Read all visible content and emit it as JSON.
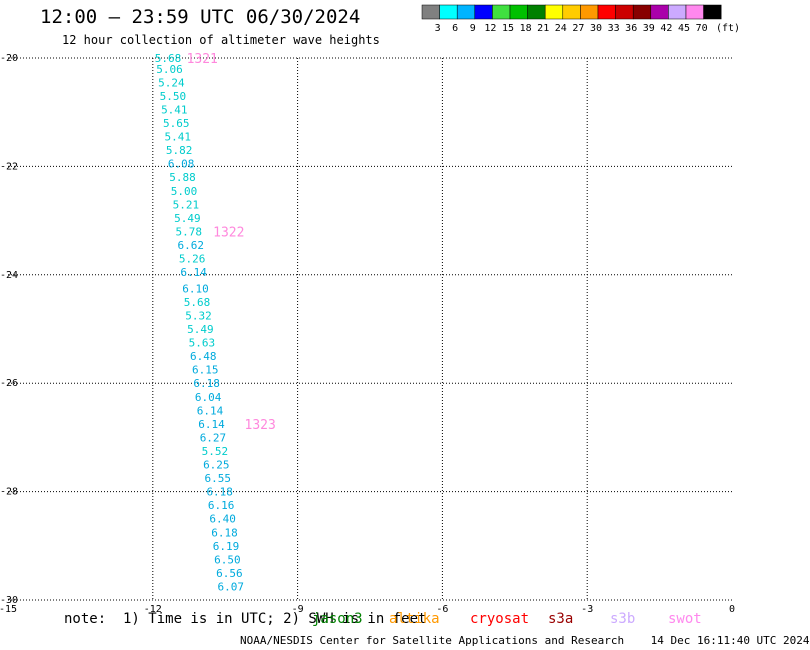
{
  "title": "12:00 – 23:59 UTC 06/30/2024",
  "subtitle": "12 hour collection of altimeter wave heights",
  "colorbar": {
    "ticks": [
      "3",
      "6",
      "9",
      "12",
      "15",
      "18",
      "21",
      "24",
      "27",
      "30",
      "33",
      "36",
      "39",
      "42",
      "45",
      "70"
    ],
    "unit": "(ft)",
    "colors": [
      "#808080",
      "#00ffff",
      "#00b4ff",
      "#0000ff",
      "#40e040",
      "#00c000",
      "#008000",
      "#ffff00",
      "#ffcc00",
      "#ff9900",
      "#ff0000",
      "#cc0000",
      "#880000",
      "#aa00aa",
      "#ccaaff",
      "#ff88ee",
      "#000000"
    ]
  },
  "note": "note:  1) Time is in UTC; 2) SWH is in feet",
  "missions": [
    {
      "label": "jason3",
      "color": "#008000"
    },
    {
      "label": "altika",
      "color": "#ff9900"
    },
    {
      "label": "cryosat",
      "color": "#ff0000"
    },
    {
      "label": "s3a",
      "color": "#990000"
    },
    {
      "label": "s3b",
      "color": "#ccaaff"
    },
    {
      "label": "swot",
      "color": "#ff88ee"
    }
  ],
  "credit": "NOAA/NESDIS Center for Satellite Applications and Research    14 Dec 16:11:40 UTC 2024",
  "chart_data": {
    "type": "scatter",
    "xlim": [
      -15,
      0
    ],
    "ylim": [
      -30,
      -20
    ],
    "xticks": [
      "-15",
      "-12",
      "-9",
      "-6",
      "-3",
      "0"
    ],
    "yticks": [
      "-20",
      "-22",
      "-24",
      "-26",
      "-28",
      "-30"
    ],
    "grid": true,
    "points": [
      {
        "x": -12.0,
        "y": -20.0,
        "label": "5.68",
        "color": "#00cccc"
      },
      {
        "x": -11.97,
        "y": -20.2,
        "label": "5.06",
        "color": "#00cccc"
      },
      {
        "x": -11.93,
        "y": -20.45,
        "label": "5.24",
        "color": "#00cccc"
      },
      {
        "x": -11.9,
        "y": -20.7,
        "label": "5.50",
        "color": "#00cccc"
      },
      {
        "x": -11.87,
        "y": -20.95,
        "label": "5.41",
        "color": "#00cccc"
      },
      {
        "x": -11.83,
        "y": -21.2,
        "label": "5.65",
        "color": "#00cccc"
      },
      {
        "x": -11.8,
        "y": -21.45,
        "label": "5.41",
        "color": "#00cccc"
      },
      {
        "x": -11.77,
        "y": -21.7,
        "label": "5.82",
        "color": "#00cccc"
      },
      {
        "x": -11.73,
        "y": -21.95,
        "label": "6.08",
        "color": "#00aadd"
      },
      {
        "x": -11.7,
        "y": -22.2,
        "label": "5.88",
        "color": "#00cccc"
      },
      {
        "x": -11.67,
        "y": -22.45,
        "label": "5.00",
        "color": "#00cccc"
      },
      {
        "x": -11.63,
        "y": -22.7,
        "label": "5.21",
        "color": "#00cccc"
      },
      {
        "x": -11.6,
        "y": -22.95,
        "label": "5.49",
        "color": "#00cccc"
      },
      {
        "x": -11.57,
        "y": -23.2,
        "label": "5.78",
        "color": "#00cccc"
      },
      {
        "x": -11.53,
        "y": -23.45,
        "label": "6.62",
        "color": "#00aadd"
      },
      {
        "x": -11.5,
        "y": -23.7,
        "label": "5.26",
        "color": "#00cccc"
      },
      {
        "x": -11.47,
        "y": -23.95,
        "label": "6.14",
        "color": "#00aadd"
      },
      {
        "x": -11.43,
        "y": -24.25,
        "label": "6.10",
        "color": "#00aadd"
      },
      {
        "x": -11.4,
        "y": -24.5,
        "label": "5.68",
        "color": "#00cccc"
      },
      {
        "x": -11.37,
        "y": -24.75,
        "label": "5.32",
        "color": "#00cccc"
      },
      {
        "x": -11.33,
        "y": -25.0,
        "label": "5.49",
        "color": "#00cccc"
      },
      {
        "x": -11.3,
        "y": -25.25,
        "label": "5.63",
        "color": "#00cccc"
      },
      {
        "x": -11.27,
        "y": -25.5,
        "label": "6.48",
        "color": "#00aadd"
      },
      {
        "x": -11.23,
        "y": -25.75,
        "label": "6.15",
        "color": "#00aadd"
      },
      {
        "x": -11.2,
        "y": -26.0,
        "label": "6.18",
        "color": "#00aadd"
      },
      {
        "x": -11.17,
        "y": -26.25,
        "label": "6.04",
        "color": "#00aadd"
      },
      {
        "x": -11.13,
        "y": -26.5,
        "label": "6.14",
        "color": "#00aadd"
      },
      {
        "x": -11.1,
        "y": -26.75,
        "label": "6.14",
        "color": "#00aadd"
      },
      {
        "x": -11.07,
        "y": -27.0,
        "label": "6.27",
        "color": "#00aadd"
      },
      {
        "x": -11.03,
        "y": -27.25,
        "label": "5.52",
        "color": "#00cccc"
      },
      {
        "x": -11.0,
        "y": -27.5,
        "label": "6.25",
        "color": "#00aadd"
      },
      {
        "x": -10.97,
        "y": -27.75,
        "label": "6.55",
        "color": "#00aadd"
      },
      {
        "x": -10.93,
        "y": -28.0,
        "label": "6.18",
        "color": "#00aadd"
      },
      {
        "x": -10.9,
        "y": -28.25,
        "label": "6.16",
        "color": "#00aadd"
      },
      {
        "x": -10.87,
        "y": -28.5,
        "label": "6.40",
        "color": "#00aadd"
      },
      {
        "x": -10.83,
        "y": -28.75,
        "label": "6.18",
        "color": "#00aadd"
      },
      {
        "x": -10.8,
        "y": -29.0,
        "label": "6.19",
        "color": "#00aadd"
      },
      {
        "x": -10.77,
        "y": -29.25,
        "label": "6.50",
        "color": "#00aadd"
      },
      {
        "x": -10.73,
        "y": -29.5,
        "label": "6.56",
        "color": "#00aadd"
      },
      {
        "x": -10.7,
        "y": -29.75,
        "label": "6.07",
        "color": "#00aadd"
      }
    ],
    "annotations": [
      {
        "x": -11.3,
        "y": -20.0,
        "label": "1321",
        "color": "#ff88dd"
      },
      {
        "x": -10.75,
        "y": -23.2,
        "label": "1322",
        "color": "#ff88dd"
      },
      {
        "x": -10.1,
        "y": -26.75,
        "label": "1323",
        "color": "#ff88dd"
      }
    ]
  }
}
